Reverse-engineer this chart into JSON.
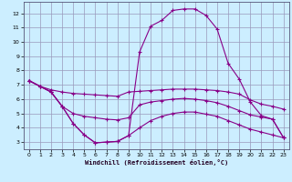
{
  "xlabel": "Windchill (Refroidissement éolien,°C)",
  "bg_color": "#cceeff",
  "grid_color": "#9999bb",
  "line_color": "#880088",
  "xlim": [
    -0.5,
    23.5
  ],
  "ylim": [
    2.5,
    12.8
  ],
  "xticks": [
    0,
    1,
    2,
    3,
    4,
    5,
    6,
    7,
    8,
    9,
    10,
    11,
    12,
    13,
    14,
    15,
    16,
    17,
    18,
    19,
    20,
    21,
    22,
    23
  ],
  "yticks": [
    3,
    4,
    5,
    6,
    7,
    8,
    9,
    10,
    11,
    12
  ],
  "curve_peak_x": [
    0,
    1,
    2,
    3,
    4,
    5,
    6,
    7,
    8,
    9,
    10,
    11,
    12,
    13,
    14,
    15,
    16,
    17,
    18,
    19,
    20,
    21,
    22,
    23
  ],
  "curve_peak_y": [
    7.3,
    6.9,
    6.5,
    5.5,
    4.3,
    3.5,
    2.95,
    3.0,
    3.05,
    3.45,
    9.3,
    11.1,
    11.5,
    12.2,
    12.3,
    12.3,
    11.85,
    10.9,
    8.5,
    7.4,
    5.8,
    4.85,
    4.6,
    3.3
  ],
  "curve_upper_x": [
    0,
    1,
    2,
    3,
    4,
    5,
    6,
    7,
    8,
    9,
    10,
    11,
    12,
    13,
    14,
    15,
    16,
    17,
    18,
    19,
    20,
    21,
    22,
    23
  ],
  "curve_upper_y": [
    7.3,
    6.9,
    6.65,
    6.5,
    6.4,
    6.35,
    6.3,
    6.25,
    6.2,
    6.5,
    6.55,
    6.6,
    6.65,
    6.7,
    6.7,
    6.7,
    6.65,
    6.6,
    6.5,
    6.35,
    5.95,
    5.65,
    5.5,
    5.3
  ],
  "curve_mid_x": [
    0,
    1,
    2,
    3,
    4,
    5,
    6,
    7,
    8,
    9,
    10,
    11,
    12,
    13,
    14,
    15,
    16,
    17,
    18,
    19,
    20,
    21,
    22,
    23
  ],
  "curve_mid_y": [
    7.3,
    6.9,
    6.5,
    5.5,
    5.0,
    4.8,
    4.7,
    4.6,
    4.55,
    4.7,
    5.6,
    5.8,
    5.9,
    6.0,
    6.05,
    6.0,
    5.9,
    5.75,
    5.5,
    5.2,
    4.9,
    4.75,
    4.6,
    3.3
  ],
  "curve_lower_x": [
    0,
    1,
    2,
    3,
    4,
    5,
    6,
    7,
    8,
    9,
    10,
    11,
    12,
    13,
    14,
    15,
    16,
    17,
    18,
    19,
    20,
    21,
    22,
    23
  ],
  "curve_lower_y": [
    7.3,
    6.9,
    6.5,
    5.5,
    4.3,
    3.5,
    2.95,
    3.0,
    3.05,
    3.45,
    4.0,
    4.5,
    4.8,
    5.0,
    5.1,
    5.1,
    4.95,
    4.8,
    4.5,
    4.2,
    3.9,
    3.7,
    3.5,
    3.3
  ]
}
